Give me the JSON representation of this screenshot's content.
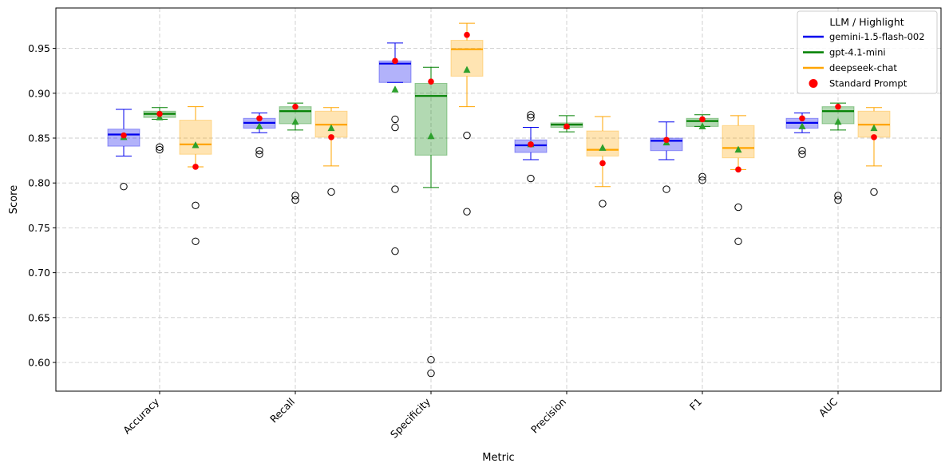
{
  "chart_data": {
    "type": "box",
    "xlabel": "Metric",
    "ylabel": "Score",
    "categories": [
      "Accuracy",
      "Recall",
      "Specificity",
      "Precision",
      "F1",
      "AUC"
    ],
    "ylim": [
      0.568,
      0.995
    ],
    "yticks": [
      0.6,
      0.65,
      0.7,
      0.75,
      0.8,
      0.85,
      0.9,
      0.95
    ],
    "grid": true,
    "legend": {
      "title": "LLM / Highlight",
      "position": "top-right",
      "entries": [
        {
          "label": "gemini-1.5-flash-002",
          "kind": "line",
          "color": "#0000ee"
        },
        {
          "label": "gpt-4.1-mini",
          "kind": "line",
          "color": "#008000"
        },
        {
          "label": "deepseek-chat",
          "kind": "line",
          "color": "#ffa500"
        },
        {
          "label": "Standard Prompt",
          "kind": "dot",
          "color": "#ff0000"
        }
      ]
    },
    "series": [
      {
        "name": "gemini-1.5-flash-002",
        "edge": "#0000ee",
        "fill": "rgba(0,0,238,0.3)",
        "boxes": [
          {
            "q1": 0.841,
            "median": 0.854,
            "q3": 0.86,
            "whislo": 0.83,
            "whishi": 0.882,
            "mean": 0.851,
            "fliers": [
              0.796
            ],
            "highlight": 0.853
          },
          {
            "q1": 0.861,
            "median": 0.867,
            "q3": 0.872,
            "whislo": 0.856,
            "whishi": 0.878,
            "mean": 0.863,
            "fliers": [
              0.836,
              0.832
            ],
            "highlight": 0.872
          },
          {
            "q1": 0.912,
            "median": 0.933,
            "q3": 0.936,
            "whislo": 0.912,
            "whishi": 0.956,
            "mean": 0.904,
            "fliers": [
              0.871,
              0.862,
              0.793,
              0.724
            ],
            "highlight": 0.936
          },
          {
            "q1": 0.834,
            "median": 0.842,
            "q3": 0.848,
            "whislo": 0.826,
            "whishi": 0.862,
            "mean": 0.843,
            "fliers": [
              0.876,
              0.873,
              0.805
            ],
            "highlight": 0.843
          },
          {
            "q1": 0.836,
            "median": 0.847,
            "q3": 0.85,
            "whislo": 0.826,
            "whishi": 0.868,
            "mean": 0.845,
            "fliers": [
              0.793
            ],
            "highlight": 0.848
          },
          {
            "q1": 0.861,
            "median": 0.867,
            "q3": 0.872,
            "whislo": 0.856,
            "whishi": 0.878,
            "mean": 0.863,
            "fliers": [
              0.836,
              0.832
            ],
            "highlight": 0.872
          }
        ]
      },
      {
        "name": "gpt-4.1-mini",
        "edge": "#008000",
        "fill": "rgba(0,128,0,0.3)",
        "boxes": [
          {
            "q1": 0.873,
            "median": 0.877,
            "q3": 0.88,
            "whislo": 0.871,
            "whishi": 0.884,
            "mean": 0.873,
            "fliers": [
              0.84,
              0.837
            ],
            "highlight": 0.877
          },
          {
            "q1": 0.866,
            "median": 0.88,
            "q3": 0.885,
            "whislo": 0.859,
            "whishi": 0.889,
            "mean": 0.868,
            "fliers": [
              0.786,
              0.781
            ],
            "highlight": 0.885
          },
          {
            "q1": 0.831,
            "median": 0.897,
            "q3": 0.911,
            "whislo": 0.795,
            "whishi": 0.929,
            "mean": 0.852,
            "fliers": [
              0.603,
              0.588
            ],
            "highlight": 0.913
          },
          {
            "q1": 0.862,
            "median": 0.865,
            "q3": 0.867,
            "whislo": 0.857,
            "whishi": 0.875,
            "mean": 0.863,
            "fliers": [],
            "highlight": 0.863
          },
          {
            "q1": 0.863,
            "median": 0.869,
            "q3": 0.872,
            "whislo": 0.863,
            "whishi": 0.876,
            "mean": 0.863,
            "fliers": [
              0.807,
              0.803
            ],
            "highlight": 0.871
          },
          {
            "q1": 0.866,
            "median": 0.88,
            "q3": 0.885,
            "whislo": 0.859,
            "whishi": 0.889,
            "mean": 0.868,
            "fliers": [
              0.786,
              0.781
            ],
            "highlight": 0.885
          }
        ]
      },
      {
        "name": "deepseek-chat",
        "edge": "#ffa500",
        "fill": "rgba(255,165,0,0.3)",
        "boxes": [
          {
            "q1": 0.832,
            "median": 0.843,
            "q3": 0.87,
            "whislo": 0.818,
            "whishi": 0.885,
            "mean": 0.842,
            "fliers": [
              0.775,
              0.735
            ],
            "highlight": 0.818
          },
          {
            "q1": 0.851,
            "median": 0.865,
            "q3": 0.88,
            "whislo": 0.819,
            "whishi": 0.884,
            "mean": 0.861,
            "fliers": [
              0.79
            ],
            "highlight": 0.851
          },
          {
            "q1": 0.919,
            "median": 0.949,
            "q3": 0.959,
            "whislo": 0.885,
            "whishi": 0.978,
            "mean": 0.926,
            "fliers": [
              0.853,
              0.768
            ],
            "highlight": 0.965
          },
          {
            "q1": 0.83,
            "median": 0.837,
            "q3": 0.858,
            "whislo": 0.796,
            "whishi": 0.874,
            "mean": 0.839,
            "fliers": [
              0.777
            ],
            "highlight": 0.822
          },
          {
            "q1": 0.828,
            "median": 0.839,
            "q3": 0.864,
            "whislo": 0.815,
            "whishi": 0.875,
            "mean": 0.837,
            "fliers": [
              0.773,
              0.735
            ],
            "highlight": 0.815
          },
          {
            "q1": 0.851,
            "median": 0.865,
            "q3": 0.88,
            "whislo": 0.819,
            "whishi": 0.884,
            "mean": 0.861,
            "fliers": [
              0.79
            ],
            "highlight": 0.851
          }
        ]
      }
    ]
  }
}
